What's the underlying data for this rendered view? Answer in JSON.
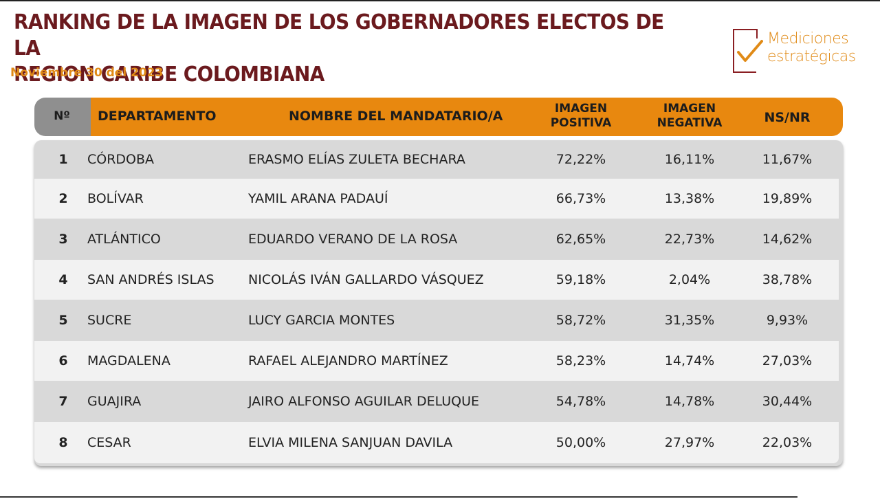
{
  "header": {
    "title_line1": "RANKING DE LA IMAGEN DE LOS GOBERNADORES ELECTOS DE LA",
    "title_line2": "REGION CARIBE COLOMBIANA",
    "date": "Noviembre 30 del 2023"
  },
  "logo": {
    "line1": "Mediciones",
    "line2": "estratégicas",
    "icon": "checkmark-icon",
    "color_primary": "#e08a16",
    "color_frame": "#8a1e22"
  },
  "table": {
    "columns": {
      "no": "Nº",
      "departamento": "DEPARTAMENTO",
      "nombre": "NOMBRE DEL MANDATARIO/A",
      "positiva_line1": "IMAGEN",
      "positiva_line2": "POSITIVA",
      "negativa_line1": "IMAGEN",
      "negativa_line2": "NEGATIVA",
      "nsnr": "NS/NR"
    },
    "rows": [
      {
        "no": "1",
        "departamento": "CÓRDOBA",
        "nombre": "ERASMO ELÍAS ZULETA BECHARA",
        "positiva": "72,22%",
        "negativa": "16,11%",
        "nsnr": "11,67%"
      },
      {
        "no": "2",
        "departamento": "BOLÍVAR",
        "nombre": "YAMIL ARANA PADAUÍ",
        "positiva": "66,73%",
        "negativa": "13,38%",
        "nsnr": "19,89%"
      },
      {
        "no": "3",
        "departamento": "ATLÁNTICO",
        "nombre": "EDUARDO VERANO DE LA ROSA",
        "positiva": "62,65%",
        "negativa": "22,73%",
        "nsnr": "14,62%"
      },
      {
        "no": "4",
        "departamento": "SAN ANDRÉS ISLAS",
        "nombre": "NICOLÁS IVÁN GALLARDO VÁSQUEZ",
        "positiva": "59,18%",
        "negativa": "2,04%",
        "nsnr": "38,78%"
      },
      {
        "no": "5",
        "departamento": "SUCRE",
        "nombre": "LUCY GARCIA MONTES",
        "positiva": "58,72%",
        "negativa": "31,35%",
        "nsnr": "9,93%"
      },
      {
        "no": "6",
        "departamento": "MAGDALENA",
        "nombre": "RAFAEL ALEJANDRO MARTÍNEZ",
        "positiva": "58,23%",
        "negativa": "14,74%",
        "nsnr": "27,03%"
      },
      {
        "no": "7",
        "departamento": "GUAJIRA",
        "nombre": "JAIRO ALFONSO AGUILAR DELUQUE",
        "positiva": "54,78%",
        "negativa": "14,78%",
        "nsnr": "30,44%"
      },
      {
        "no": "8",
        "departamento": "CESAR",
        "nombre": "ELVIA MILENA SANJUAN DAVILA",
        "positiva": "50,00%",
        "negativa": "27,97%",
        "nsnr": "22,03%"
      }
    ]
  },
  "colors": {
    "title": "#6b1a1e",
    "accent_orange": "#e8880f",
    "header_grey": "#8f8f8f",
    "row_dark": "#d9d9d9",
    "row_light": "#f2f2f2"
  }
}
